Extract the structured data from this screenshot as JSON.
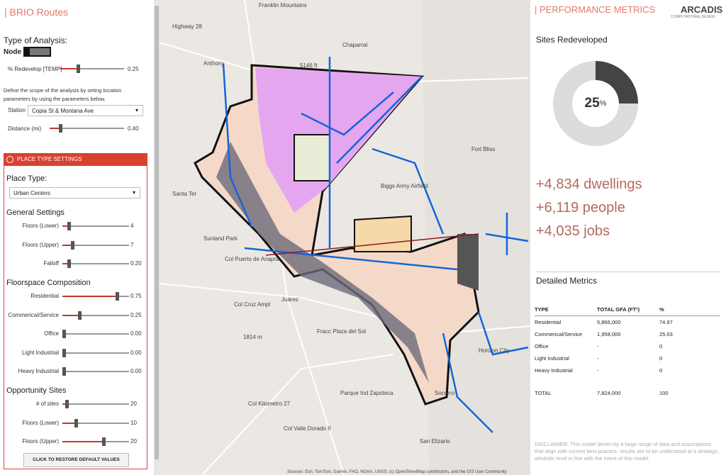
{
  "left": {
    "title": "| BRIO Routes",
    "analysis_label": "Type of Analysis:",
    "mode": "Node",
    "redevelop": {
      "label": "% Redevelop [TEMP]",
      "value": "0.25"
    },
    "description": "Define the scope of the analysis by seting location parameters by using the parameters below.",
    "station": {
      "label": "Station",
      "value": "Copia St & Montana Ave"
    },
    "distance": {
      "label": "Distance (mi)",
      "value": "0.40"
    },
    "place_type": {
      "header": "PLACE TYPE SETTINGS",
      "label": "Place Type:",
      "value": "Urban Centers"
    },
    "sections": [
      {
        "title": "General Settings",
        "sliders": [
          {
            "label": "Floors (Lower)",
            "value": "4"
          },
          {
            "label": "Floors (Upper)",
            "value": "7"
          },
          {
            "label": "Falloff",
            "value": "0.20"
          }
        ]
      },
      {
        "title": "Floorspace Composition",
        "sliders": [
          {
            "label": "Residential",
            "value": "0.75"
          },
          {
            "label": "Commerical/Service",
            "value": "0.25"
          },
          {
            "label": "Office",
            "value": "0.00"
          },
          {
            "label": "Light Industrial",
            "value": "0.00"
          },
          {
            "label": "Heavy Industrial",
            "value": "0.00"
          }
        ]
      },
      {
        "title": "Opportunity Sites",
        "sliders": [
          {
            "label": "# of sites",
            "value": "20"
          },
          {
            "label": "Floors (Lower)",
            "value": "10"
          },
          {
            "label": "Floors (Upper)",
            "value": "20"
          }
        ]
      }
    ],
    "button": "CLICK TO RESTORE DEFAULT VALUES"
  },
  "map": {
    "labels": [
      "Anthony",
      "Chaparral",
      "Franklin Mountains",
      "Highway 28",
      "5146 ft",
      "Santa Ter",
      "Sunland Park",
      "Col Puerto de Anapra",
      "Juárez",
      "Col Cruz Ampl",
      "Fracc Plaza del Sol",
      "1814 m",
      "Parque Ind Zapoteca",
      "Col Kilometro 27",
      "Col Valle Dorado II",
      "Fort Bliss",
      "Biggs Army Airfield",
      "Horizon City",
      "Socorro",
      "San Elizario"
    ],
    "attribution": "Sources: Esri, TomTom, Garmin, FAO, NOAA, USGS, (c) OpenStreetMap contributors, and the GIS User Community"
  },
  "right": {
    "title": "| PERFORMANCE METRICS",
    "logo": {
      "name": "ARCADIS",
      "tagline": "COMPUTATIONAL DESIGN"
    },
    "sites_title": "Sites Redeveloped",
    "donut": {
      "value": 25,
      "unit": "%"
    },
    "stats": [
      "+4,834 dwellings",
      "+6,119 people",
      "+4,035 jobs"
    ],
    "detailed_title": "Detailed Metrics",
    "table": {
      "headers": [
        "TYPE",
        "TOTAL GFA (FT²)",
        "%"
      ],
      "rows": [
        [
          "Residential",
          "5,866,000",
          "74.97"
        ],
        [
          "Commerical/Service",
          "1,958,000",
          "25.03"
        ],
        [
          "Office",
          "-",
          "0"
        ],
        [
          "Light Industrial",
          "-",
          "0"
        ],
        [
          "Heavy Industrial",
          "-",
          "0"
        ]
      ],
      "total": [
        "TOTAL",
        "7,824,000",
        "100"
      ]
    },
    "disclaimer": "DISCLAIMER: This model driven by a large range of data and assumptions that align with current best practice, results are to be understood at a strategic, wholistic level in line with the intent of this model."
  }
}
